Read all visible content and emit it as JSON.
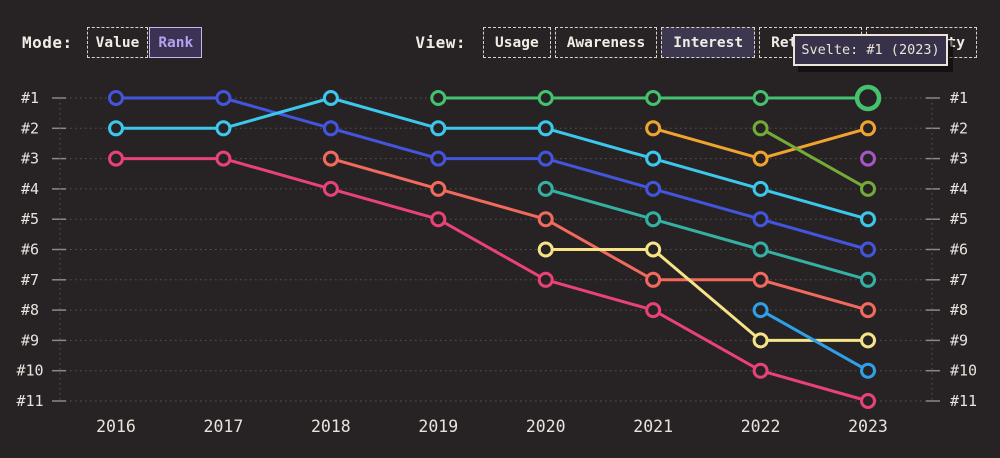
{
  "colors": {
    "background": "#272325",
    "selected_accent": "#b5a1ee"
  },
  "toolbar": {
    "mode": {
      "label": "Mode:",
      "selected": "Rank",
      "options": [
        {
          "label": "Value",
          "selected": false
        },
        {
          "label": "Rank",
          "selected": true
        }
      ]
    },
    "view": {
      "label": "View:",
      "selected": "Interest",
      "options": [
        {
          "label": "Usage",
          "selected": false
        },
        {
          "label": "Awareness",
          "selected": false
        },
        {
          "label": "Interest",
          "selected": true
        },
        {
          "label": "Retention",
          "selected": false
        },
        {
          "label": "Positivity",
          "selected": false
        }
      ]
    }
  },
  "tooltip": {
    "text": "Svelte: #1 (2023)"
  },
  "chart_data": {
    "type": "line",
    "subtype": "bump-rank",
    "x": [
      2016,
      2017,
      2018,
      2019,
      2020,
      2021,
      2022,
      2023
    ],
    "y_tick_labels": [
      "#1",
      "#2",
      "#3",
      "#4",
      "#5",
      "#6",
      "#7",
      "#8",
      "#9",
      "#10",
      "#11"
    ],
    "ylim": [
      1,
      11
    ],
    "y_inverted": true,
    "grid": true,
    "legend": "none",
    "series": [
      {
        "id": "indigo",
        "color": "#4355dc",
        "points": [
          [
            2016,
            1
          ],
          [
            2017,
            1
          ],
          [
            2018,
            2
          ],
          [
            2019,
            3
          ],
          [
            2020,
            3
          ],
          [
            2021,
            4
          ],
          [
            2022,
            5
          ],
          [
            2023,
            6
          ]
        ]
      },
      {
        "id": "cyan",
        "color": "#3cc8ec",
        "points": [
          [
            2016,
            2
          ],
          [
            2017,
            2
          ],
          [
            2018,
            1
          ],
          [
            2019,
            2
          ],
          [
            2020,
            2
          ],
          [
            2021,
            3
          ],
          [
            2022,
            4
          ],
          [
            2023,
            5
          ]
        ]
      },
      {
        "id": "magenta",
        "color": "#e94277",
        "points": [
          [
            2016,
            3
          ],
          [
            2017,
            3
          ],
          [
            2018,
            4
          ],
          [
            2019,
            5
          ],
          [
            2020,
            7
          ],
          [
            2021,
            8
          ],
          [
            2022,
            10
          ],
          [
            2023,
            11
          ]
        ]
      },
      {
        "id": "coral",
        "color": "#f26a5e",
        "points": [
          [
            2018,
            3
          ],
          [
            2019,
            4
          ],
          [
            2020,
            5
          ],
          [
            2021,
            7
          ],
          [
            2022,
            7
          ],
          [
            2023,
            8
          ]
        ]
      },
      {
        "id": "green",
        "name": "Svelte",
        "color": "#45c26d",
        "points": [
          [
            2019,
            1
          ],
          [
            2020,
            1
          ],
          [
            2021,
            1
          ],
          [
            2022,
            1
          ],
          [
            2023,
            1
          ]
        ]
      },
      {
        "id": "teal",
        "color": "#34b1a2",
        "points": [
          [
            2020,
            4
          ],
          [
            2021,
            5
          ],
          [
            2022,
            6
          ],
          [
            2023,
            7
          ]
        ]
      },
      {
        "id": "yellow",
        "color": "#f6e386",
        "points": [
          [
            2020,
            6
          ],
          [
            2021,
            6
          ],
          [
            2022,
            9
          ],
          [
            2023,
            9
          ]
        ]
      },
      {
        "id": "orange",
        "color": "#efa42e",
        "points": [
          [
            2021,
            2
          ],
          [
            2022,
            3
          ],
          [
            2023,
            2
          ]
        ]
      },
      {
        "id": "apple-green",
        "color": "#73ab36",
        "points": [
          [
            2022,
            2
          ],
          [
            2023,
            4
          ]
        ]
      },
      {
        "id": "azure",
        "color": "#2fa0e7",
        "points": [
          [
            2022,
            8
          ],
          [
            2023,
            10
          ]
        ]
      },
      {
        "id": "purple",
        "color": "#a557c6",
        "points": [
          [
            2023,
            3
          ]
        ]
      }
    ],
    "highlight": {
      "series": "green",
      "x": 2023,
      "rank": 1
    }
  }
}
